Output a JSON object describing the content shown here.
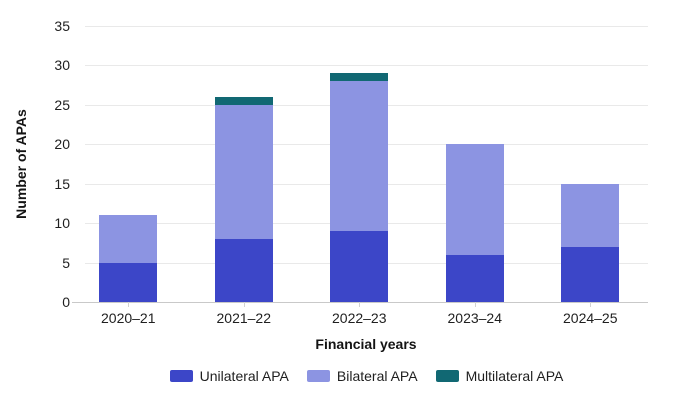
{
  "chart_data": {
    "type": "bar",
    "stacked": true,
    "title": "",
    "xlabel": "Financial years",
    "ylabel": "Number of APAs",
    "categories": [
      "2020–21",
      "2021–22",
      "2022–23",
      "2023–24",
      "2024–25"
    ],
    "series": [
      {
        "name": "Unilateral APA",
        "color": "#3c46c8",
        "values": [
          5,
          8,
          9,
          6,
          7
        ]
      },
      {
        "name": "Bilateral APA",
        "color": "#8c94e2",
        "values": [
          6,
          17,
          19,
          14,
          8
        ]
      },
      {
        "name": "Multilateral APA",
        "color": "#116873",
        "values": [
          0,
          1,
          1,
          0,
          0
        ]
      }
    ],
    "totals": [
      11,
      26,
      29,
      20,
      15
    ],
    "ylim": [
      0,
      35
    ],
    "yticks": [
      0,
      5,
      10,
      15,
      20,
      25,
      30,
      35
    ],
    "grid": "horizontal",
    "legend_position": "bottom",
    "colors": {
      "gridline": "#e9e9e9",
      "axis_line": "#c9c9c9",
      "tick_mark": "#d2d2d2",
      "text": "#1f1f1f",
      "background": "#ffffff"
    }
  }
}
